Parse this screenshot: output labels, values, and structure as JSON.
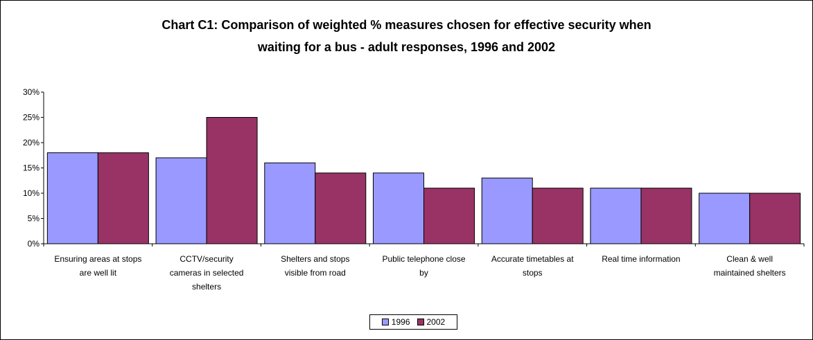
{
  "chart_data": {
    "type": "bar",
    "title_lines": [
      "Chart C1: Comparison of weighted % measures chosen for effective security when",
      "waiting for a bus - adult responses, 1996 and 2002"
    ],
    "categories": [
      [
        "Ensuring areas at stops",
        "are well lit"
      ],
      [
        "CCTV/security",
        "cameras in selected",
        "shelters"
      ],
      [
        "Shelters and stops",
        "visible from road"
      ],
      [
        "Public telephone close",
        "by"
      ],
      [
        "Accurate timetables at",
        "stops"
      ],
      [
        "Real time information"
      ],
      [
        "Clean & well",
        "maintained shelters"
      ]
    ],
    "series": [
      {
        "name": "1996",
        "color": "#9999ff",
        "values": [
          18,
          17,
          16,
          14,
          13,
          11,
          10
        ]
      },
      {
        "name": "2002",
        "color": "#993366",
        "values": [
          18,
          25,
          14,
          11,
          11,
          11,
          10
        ]
      }
    ],
    "ylim": [
      0,
      30
    ],
    "yticks": [
      "0%",
      "5%",
      "10%",
      "15%",
      "20%",
      "25%",
      "30%"
    ],
    "ytick_values": [
      0,
      5,
      10,
      15,
      20,
      25,
      30
    ],
    "grid": false,
    "legend_position": "bottom"
  }
}
